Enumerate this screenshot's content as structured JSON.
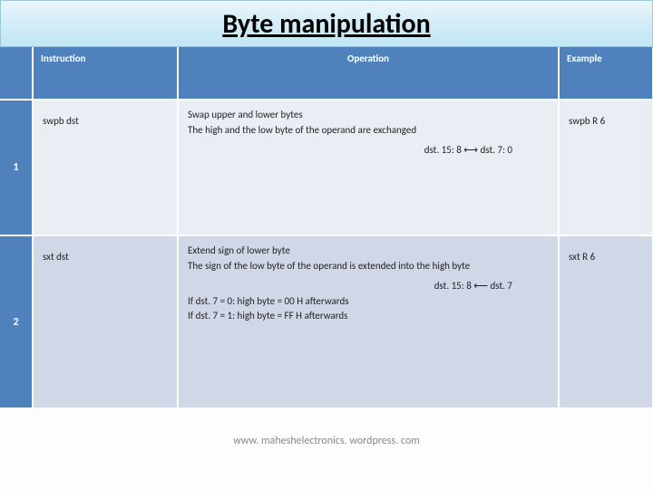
{
  "title": "Byte manipulation",
  "headers": {
    "instruction": "Instruction",
    "operation": "Operation",
    "example": "Example"
  },
  "rows": [
    {
      "num": "1",
      "instruction": "swpb  dst",
      "op_line1": "Swap upper and lower bytes",
      "op_line2": "The high and the low byte of the operand are exchanged",
      "op_exch": "dst. 15: 8 ⟷ dst. 7: 0",
      "example": "swpb  R 6"
    },
    {
      "num": "2",
      "instruction": "sxt  dst",
      "op_line1": "Extend sign of lower byte",
      "op_line2": "The sign of the low byte of the operand is extended into the high byte",
      "op_exch": "dst. 15: 8 ⟵  dst. 7",
      "op_line3": "If  dst. 7 = 0:   high byte = 00 H afterwards",
      "op_line4": "If  dst. 7 = 1:   high byte = FF H afterwards",
      "example": "sxt  R 6"
    }
  ],
  "footer": "www. maheshelectronics. wordpress. com"
}
